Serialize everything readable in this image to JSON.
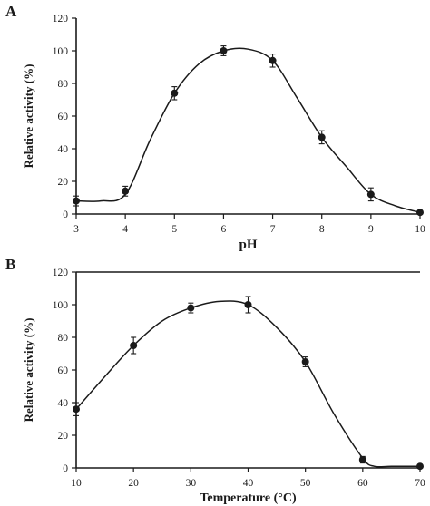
{
  "chart_data": [
    {
      "panel": "A",
      "type": "line",
      "xlabel": "pH",
      "ylabel": "Relative activity (%)",
      "xlim": [
        3,
        10
      ],
      "ylim": [
        0,
        120
      ],
      "xticks": [
        "3",
        "4",
        "5",
        "6",
        "7",
        "8",
        "9",
        "10"
      ],
      "yticks": [
        "0",
        "20",
        "40",
        "60",
        "80",
        "100",
        "120"
      ],
      "grid": false,
      "x": [
        3,
        4,
        5,
        6,
        7,
        8,
        9,
        10
      ],
      "values": [
        8,
        14,
        74,
        100,
        94,
        47,
        12,
        1
      ],
      "errors": [
        3,
        3,
        4,
        3,
        4,
        4,
        4,
        1
      ],
      "curve_x": [
        3,
        3.5,
        4,
        4.5,
        5,
        5.5,
        6,
        6.5,
        7,
        7.5,
        8,
        8.5,
        9,
        9.5,
        10
      ],
      "curve_y": [
        8,
        8,
        12,
        45,
        74,
        92,
        100,
        101,
        94,
        71,
        47,
        29,
        12,
        5,
        1
      ]
    },
    {
      "panel": "B",
      "type": "line",
      "xlabel": "Temperature (°C)",
      "ylabel": "Relative activity (%)",
      "xlim": [
        10,
        70
      ],
      "ylim": [
        0,
        120
      ],
      "xticks": [
        "10",
        "20",
        "30",
        "40",
        "50",
        "60",
        "70"
      ],
      "yticks": [
        "0",
        "20",
        "40",
        "60",
        "80",
        "100",
        "120"
      ],
      "grid": false,
      "x": [
        10,
        20,
        30,
        40,
        50,
        60,
        70
      ],
      "values": [
        36,
        75,
        98,
        100,
        65,
        5,
        1
      ],
      "errors": [
        4,
        5,
        3,
        5,
        3,
        2,
        1
      ],
      "curve_x": [
        10,
        15,
        20,
        25,
        30,
        35,
        40,
        45,
        50,
        55,
        60,
        62,
        65,
        70
      ],
      "curve_y": [
        36,
        56,
        75,
        90,
        98,
        102,
        100,
        86,
        65,
        33,
        6,
        1,
        1,
        1
      ]
    }
  ]
}
